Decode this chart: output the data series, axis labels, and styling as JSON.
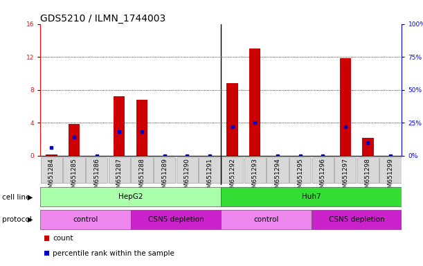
{
  "title": "GDS5210 / ILMN_1744003",
  "samples": [
    "GSM651284",
    "GSM651285",
    "GSM651286",
    "GSM651287",
    "GSM651288",
    "GSM651289",
    "GSM651290",
    "GSM651291",
    "GSM651292",
    "GSM651293",
    "GSM651294",
    "GSM651295",
    "GSM651296",
    "GSM651297",
    "GSM651298",
    "GSM651299"
  ],
  "counts": [
    0.1,
    3.8,
    0.0,
    7.2,
    6.8,
    0.0,
    0.0,
    0.0,
    8.8,
    13.0,
    0.0,
    0.0,
    0.0,
    11.8,
    2.2,
    0.0
  ],
  "percentiles": [
    6,
    14,
    0,
    18,
    18,
    0,
    0,
    0,
    22,
    25,
    0,
    0,
    0,
    22,
    10,
    0
  ],
  "cell_line_groups": [
    {
      "label": "HepG2",
      "start": 0,
      "end": 8,
      "color": "#aaffaa"
    },
    {
      "label": "Huh7",
      "start": 8,
      "end": 16,
      "color": "#33dd33"
    }
  ],
  "protocol_groups": [
    {
      "label": "control",
      "start": 0,
      "end": 4,
      "color": "#ee88ee"
    },
    {
      "label": "CSN5 depletion",
      "start": 4,
      "end": 8,
      "color": "#cc22cc"
    },
    {
      "label": "control",
      "start": 8,
      "end": 12,
      "color": "#ee88ee"
    },
    {
      "label": "CSN5 depletion",
      "start": 12,
      "end": 16,
      "color": "#cc22cc"
    }
  ],
  "ylim_left": [
    0,
    16
  ],
  "ylim_right": [
    0,
    100
  ],
  "yticks_left": [
    0,
    4,
    8,
    12,
    16
  ],
  "yticks_right": [
    0,
    25,
    50,
    75,
    100
  ],
  "bar_color": "#cc0000",
  "pct_color": "#0000cc",
  "bar_width": 0.5,
  "title_fontsize": 10,
  "tick_fontsize": 6.5,
  "label_fontsize": 7.5,
  "legend_fontsize": 7.5
}
